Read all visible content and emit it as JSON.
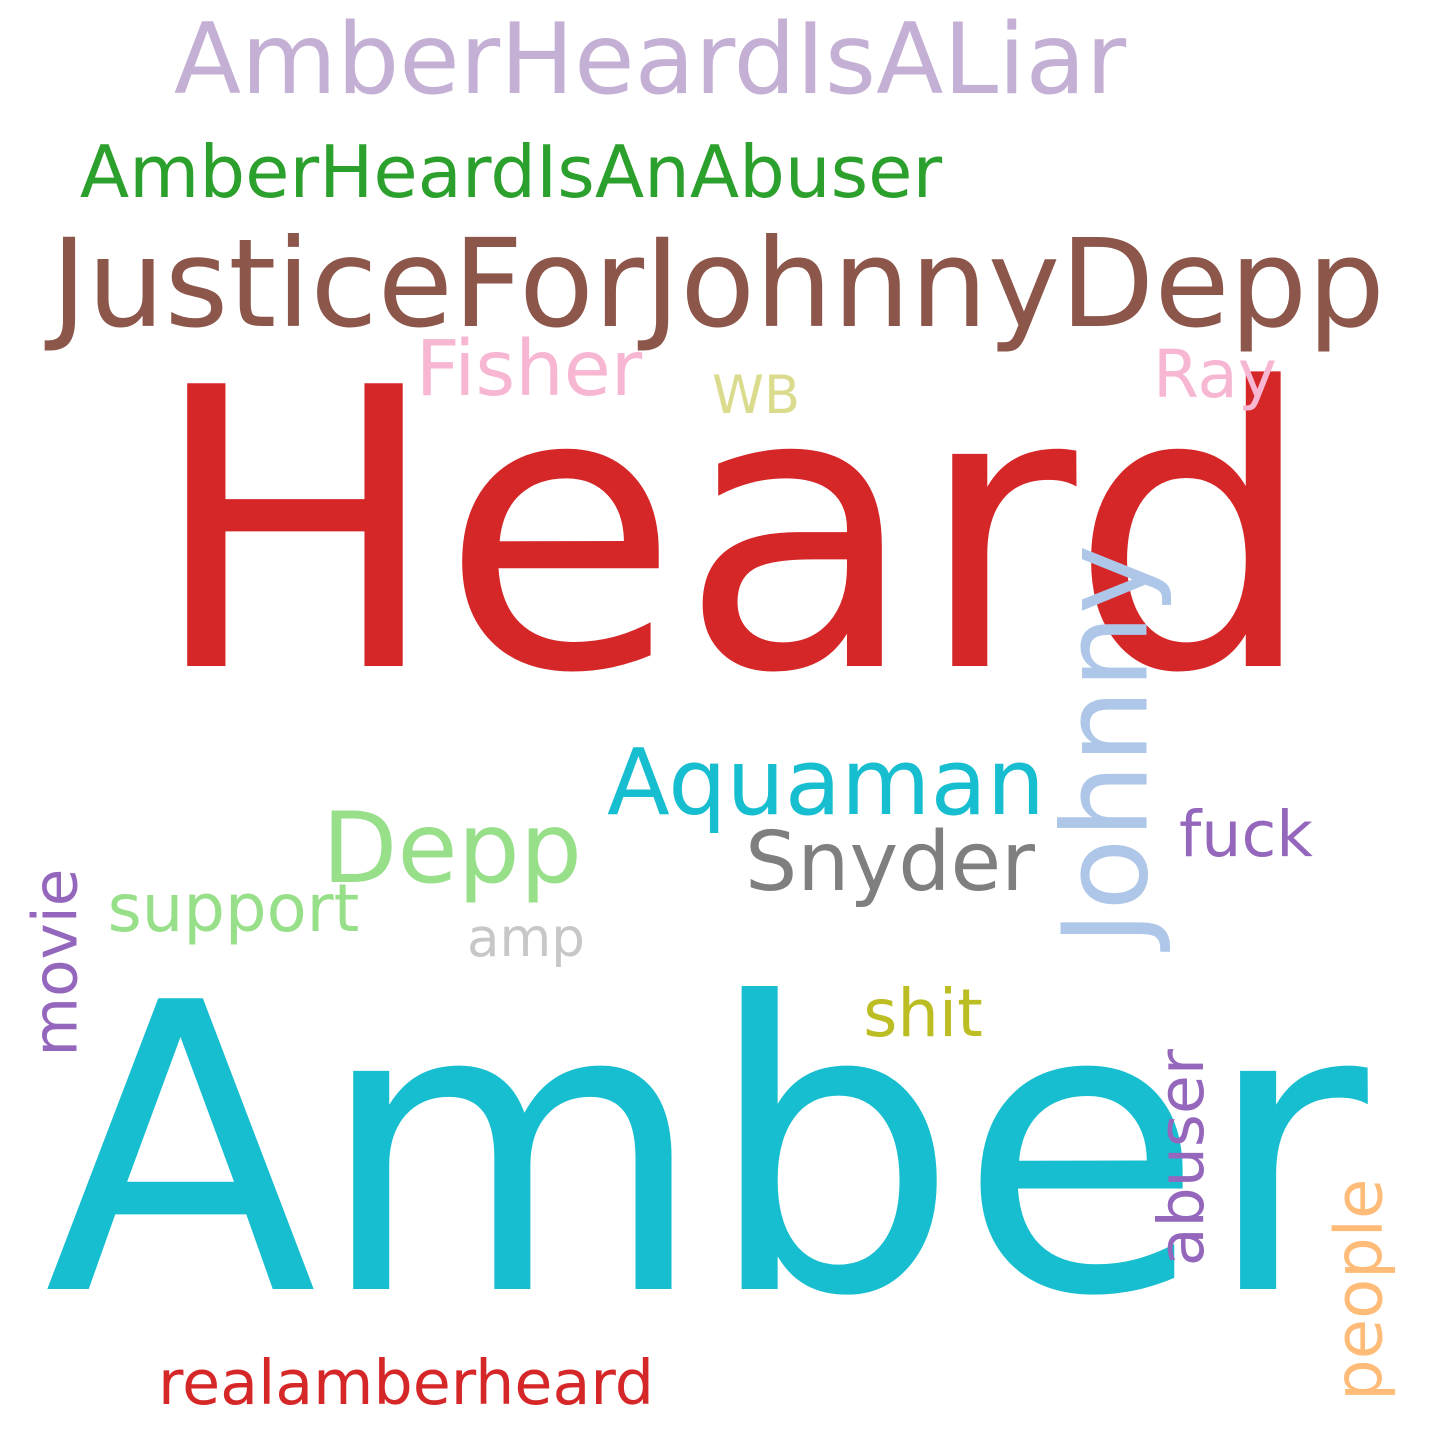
{
  "words": [
    {
      "id": "heard",
      "text": "Heard",
      "color": "#d62728",
      "orientation": "horizontal"
    },
    {
      "id": "amber",
      "text": "Amber",
      "color": "#17becf",
      "orientation": "horizontal"
    },
    {
      "id": "justice",
      "text": "JusticeForJohnnyDepp",
      "color": "#8c564b",
      "orientation": "horizontal"
    },
    {
      "id": "liar",
      "text": "AmberHeardIsALiar",
      "color": "#c5b0d5",
      "orientation": "horizontal"
    },
    {
      "id": "abuser-tag",
      "text": "AmberHeardIsAnAbuser",
      "color": "#2ca02c",
      "orientation": "horizontal"
    },
    {
      "id": "johnny",
      "text": "Johnny",
      "color": "#aec7e8",
      "orientation": "vertical"
    },
    {
      "id": "aquaman",
      "text": "Aquaman",
      "color": "#17becf",
      "orientation": "horizontal"
    },
    {
      "id": "depp",
      "text": "Depp",
      "color": "#98df8a",
      "orientation": "horizontal"
    },
    {
      "id": "snyder",
      "text": "Snyder",
      "color": "#7f7f7f",
      "orientation": "horizontal"
    },
    {
      "id": "fisher",
      "text": "Fisher",
      "color": "#f7b6d2",
      "orientation": "horizontal"
    },
    {
      "id": "ray",
      "text": "Ray",
      "color": "#f7b6d2",
      "orientation": "horizontal"
    },
    {
      "id": "wb",
      "text": "WB",
      "color": "#dbdb8d",
      "orientation": "horizontal"
    },
    {
      "id": "fuck",
      "text": "fuck",
      "color": "#9467bd",
      "orientation": "horizontal"
    },
    {
      "id": "movie",
      "text": "movie",
      "color": "#9467bd",
      "orientation": "vertical"
    },
    {
      "id": "support",
      "text": "support",
      "color": "#98df8a",
      "orientation": "horizontal"
    },
    {
      "id": "amp",
      "text": "amp",
      "color": "#c7c7c7",
      "orientation": "horizontal"
    },
    {
      "id": "shit",
      "text": "shit",
      "color": "#bcbd22",
      "orientation": "horizontal"
    },
    {
      "id": "abuser",
      "text": "abuser",
      "color": "#9467bd",
      "orientation": "vertical"
    },
    {
      "id": "people",
      "text": "people",
      "color": "#ffbb78",
      "orientation": "vertical"
    },
    {
      "id": "realamberheard",
      "text": "realamberheard",
      "color": "#d62728",
      "orientation": "horizontal"
    }
  ]
}
